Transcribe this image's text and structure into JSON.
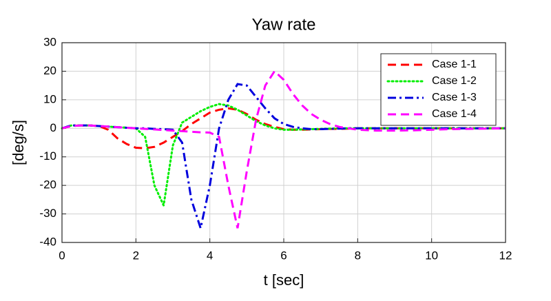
{
  "chart_data": {
    "type": "line",
    "title": "Yaw rate",
    "x_label": "t [sec]",
    "y_label": "[deg/s]",
    "x": [
      0,
      0.25,
      0.5,
      0.75,
      1,
      1.25,
      1.5,
      1.75,
      2,
      2.25,
      2.5,
      2.75,
      3,
      3.25,
      3.5,
      3.75,
      4,
      4.25,
      4.5,
      4.75,
      5,
      5.25,
      5.5,
      5.75,
      6,
      6.25,
      6.5,
      6.75,
      7,
      7.25,
      7.5,
      7.75,
      8,
      8.5,
      9,
      9.5,
      10,
      10.5,
      11,
      11.5,
      12
    ],
    "series": [
      {
        "name": "Case 1-1",
        "color": "#ff0000",
        "style": "dashed",
        "values": [
          0,
          0.8,
          1,
          1,
          0.8,
          -0.5,
          -3.5,
          -5.5,
          -6.8,
          -7,
          -6.5,
          -5,
          -3,
          -1,
          1.5,
          3.5,
          5.5,
          6.5,
          7,
          6.5,
          5,
          3,
          1.5,
          0.5,
          -0.3,
          -0.5,
          -0.5,
          -0.4,
          -0.3,
          -0.2,
          -0.2,
          -0.1,
          0,
          0,
          0,
          0,
          0,
          0,
          0,
          0,
          0
        ]
      },
      {
        "name": "Case 1-2",
        "color": "#00ee00",
        "style": "dotted",
        "values": [
          0,
          1,
          1,
          1,
          0.8,
          0.6,
          0.4,
          0.2,
          0,
          -3,
          -20,
          -27,
          -6,
          2,
          4,
          6,
          7.5,
          8.5,
          8,
          6.5,
          4.5,
          2.5,
          1,
          0,
          -0.5,
          -0.5,
          -0.4,
          -0.3,
          -0.2,
          -0.1,
          0,
          0,
          0,
          0,
          0,
          0,
          0,
          0,
          0,
          0,
          0
        ]
      },
      {
        "name": "Case 1-3",
        "color": "#0000dd",
        "style": "dashdot",
        "values": [
          0,
          1,
          1,
          1,
          0.8,
          0.6,
          0.4,
          0.2,
          0,
          0,
          -0.2,
          -0.3,
          -0.5,
          -5,
          -25,
          -35,
          -20,
          0,
          10,
          15.5,
          15,
          11,
          7,
          3.5,
          1.5,
          0.5,
          0,
          -0.3,
          -0.3,
          -0.2,
          -0.1,
          0,
          0,
          0,
          0,
          0,
          0,
          0,
          0,
          0,
          0
        ]
      },
      {
        "name": "Case 1-4",
        "color": "#ff00ff",
        "style": "dashed",
        "values": [
          0,
          0.8,
          1,
          1,
          0.8,
          0.6,
          0.4,
          0.2,
          0,
          -0.2,
          -0.4,
          -0.6,
          -0.8,
          -1,
          -1.2,
          -1.4,
          -1.5,
          -3,
          -20,
          -35,
          -15,
          3,
          15,
          20,
          17,
          12,
          8,
          5,
          3,
          1.5,
          0.5,
          0,
          -0.5,
          -0.8,
          -0.8,
          -0.7,
          -0.5,
          -0.3,
          -0.2,
          -0.1,
          0
        ]
      }
    ],
    "xlim": [
      0,
      12
    ],
    "xticks": [
      0,
      2,
      4,
      6,
      8,
      10,
      12
    ],
    "ylim": [
      -40,
      30
    ],
    "yticks": [
      -40,
      -30,
      -20,
      -10,
      0,
      10,
      20,
      30
    ],
    "grid": true,
    "legend": "upper right"
  }
}
